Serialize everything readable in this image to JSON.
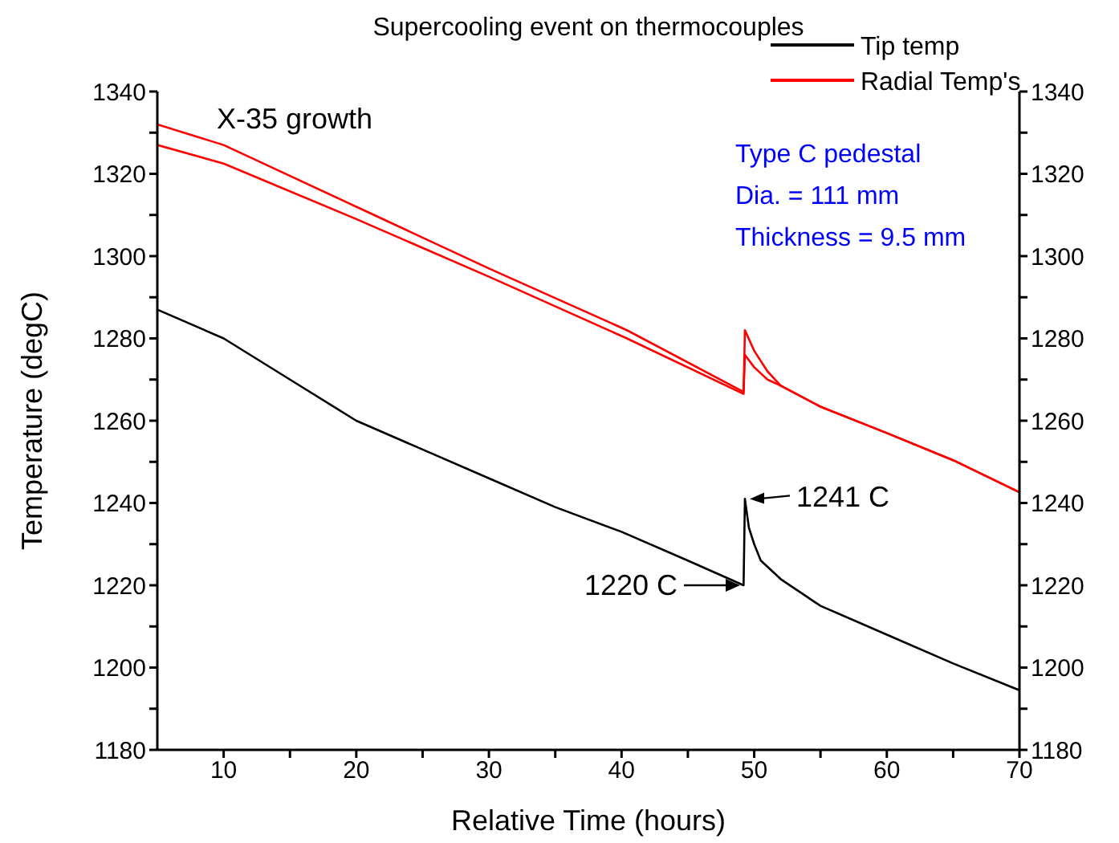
{
  "chart_data": {
    "type": "line",
    "title": "Supercooling event on thermocouples",
    "xlabel": "Relative Time (hours)",
    "ylabel": "Temperature (degC)",
    "annotations": [
      "X-35 growth",
      "Type C pedestal",
      "Dia. = 111 mm",
      "Thickness = 9.5 mm",
      {
        "text": "1241 C",
        "x": 49.3,
        "y": 1241
      },
      {
        "text": "1220 C",
        "x": 49.3,
        "y": 1220
      }
    ],
    "series": [
      {
        "name": "Tip temp",
        "color": "#000000",
        "x": [
          5,
          10,
          15,
          20,
          25,
          30,
          35,
          40,
          45,
          49.2,
          49.3,
          49.6,
          50,
          50.5,
          52,
          55,
          60,
          65,
          70
        ],
        "values": [
          1287,
          1280,
          1270,
          1260,
          1253,
          1246,
          1239,
          1233,
          1226,
          1220,
          1241,
          1234,
          1230,
          1226,
          1221.5,
          1215,
          1208,
          1201,
          1194.5
        ]
      },
      {
        "name": "Radial Temp's",
        "color": "#ff0000",
        "x": [
          5,
          10,
          20,
          30,
          40.4,
          49.2,
          49.3,
          50,
          51,
          52,
          55,
          60,
          65,
          70
        ],
        "values": [
          1332,
          1327,
          1312,
          1297,
          1282,
          1267,
          1282,
          1277,
          1272,
          1268.5,
          1263.4,
          1257,
          1250.4,
          1242.6
        ]
      },
      {
        "color": "#ff0000",
        "x": [
          5,
          10,
          20,
          30,
          40.4,
          49.2,
          49.3,
          50,
          51,
          52,
          55,
          60,
          65,
          70
        ],
        "values": [
          1327,
          1322.5,
          1309,
          1295,
          1280,
          1266.5,
          1276,
          1273,
          1270,
          1268.5,
          1263.4,
          1257,
          1250.4,
          1242.6
        ]
      }
    ],
    "xlim": [
      5,
      70
    ],
    "xticks": [
      10,
      {
        "value": 15,
        "label": null
      },
      20,
      {
        "value": 25,
        "label": null
      },
      30,
      {
        "value": 35,
        "label": null
      },
      40,
      {
        "value": 45,
        "label": null
      },
      50,
      {
        "value": 55,
        "label": null
      },
      60,
      {
        "value": 65,
        "label": null
      },
      70
    ],
    "ylim": [
      1180,
      1340
    ],
    "yticks": [
      1180,
      {
        "value": 1190,
        "label": null
      },
      1200,
      {
        "value": 1210,
        "label": null
      },
      1220,
      {
        "value": 1230,
        "label": null
      },
      1240,
      {
        "value": 1250,
        "label": null
      },
      1260,
      {
        "value": 1270,
        "label": null
      },
      1280,
      {
        "value": 1290,
        "label": null
      },
      1300,
      {
        "value": 1310,
        "label": null
      },
      1320,
      {
        "value": 1330,
        "label": null
      },
      1340
    ],
    "y2lim": [
      1180,
      1340
    ],
    "y2ticks": [
      1180,
      {
        "value": 1190,
        "label": null
      },
      1200,
      {
        "value": 1210,
        "label": null
      },
      1220,
      {
        "value": 1230,
        "label": null
      },
      1240,
      {
        "value": 1250,
        "label": null
      },
      1260,
      {
        "value": 1270,
        "label": null
      },
      1280,
      {
        "value": 1290,
        "label": null
      },
      1300,
      {
        "value": 1310,
        "label": null
      },
      1320,
      {
        "value": 1330,
        "label": null
      },
      1340
    ],
    "legend": "top right",
    "marker": "none",
    "line_style": "solid"
  }
}
